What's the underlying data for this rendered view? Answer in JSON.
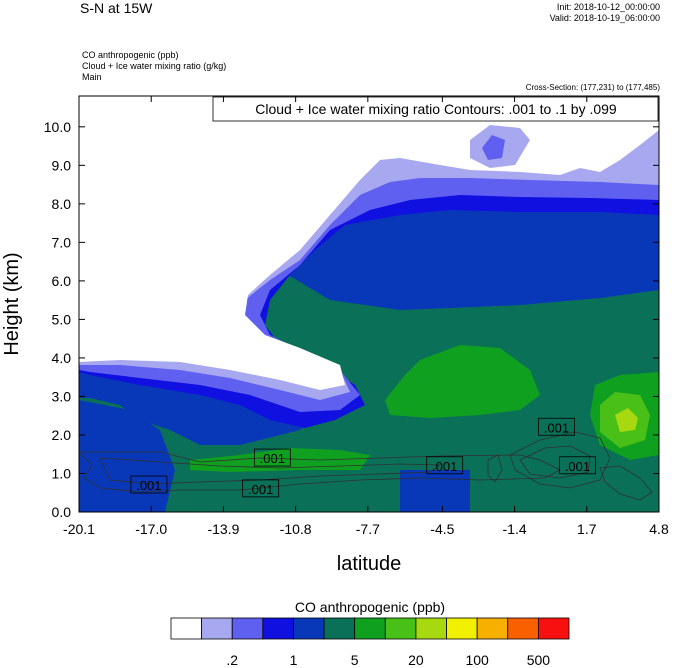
{
  "header": {
    "title": "S-N at 15W",
    "init": "Init: 2018-10-12_00:00:00",
    "valid": "Valid: 2018-10-19_06:00:00",
    "field1": "CO anthropogenic   (ppb)",
    "field2": "Cloud + Ice water mixing ratio   (g/kg)",
    "field3": "Main",
    "cross_section": "Cross-Section: (177,231) to (177,485)"
  },
  "chart_data": {
    "type": "contour",
    "title": "",
    "contour_info": "Cloud + Ice water mixing ratio Contours: .001 to .1 by .099",
    "xlabel": "latitude",
    "ylabel": "Height (km)",
    "xlim": [
      -20.1,
      4.8
    ],
    "ylim": [
      0.0,
      10.8
    ],
    "x_ticks": [
      "-20.1",
      "-17.0",
      "-13.9",
      "-10.8",
      "-7.7",
      "-4.5",
      "-1.4",
      "1.7",
      "4.8"
    ],
    "x_tick_values": [
      -20.1,
      -17.0,
      -13.9,
      -10.8,
      -7.7,
      -4.5,
      -1.4,
      1.7,
      4.8
    ],
    "y_ticks": [
      "0.0",
      "1.0",
      "2.0",
      "3.0",
      "4.0",
      "5.0",
      "6.0",
      "7.0",
      "8.0",
      "9.0",
      "10.0"
    ],
    "y_tick_values": [
      0,
      1,
      2,
      3,
      4,
      5,
      6,
      7,
      8,
      9,
      10
    ],
    "contour_labels": [
      {
        "text": ".001",
        "x": -17.1,
        "y": 0.7
      },
      {
        "text": ".001",
        "x": -11.8,
        "y": 1.4
      },
      {
        "text": ".001",
        "x": -12.3,
        "y": 0.6
      },
      {
        "text": ".001",
        "x": -4.4,
        "y": 1.2
      },
      {
        "text": ".001",
        "x": 0.4,
        "y": 2.2
      },
      {
        "text": ".001",
        "x": 1.3,
        "y": 1.2
      }
    ],
    "colorbar": {
      "title": "CO anthropogenic  (ppb)",
      "colors": [
        "#ffffff",
        "#a8a8f0",
        "#6060f0",
        "#1010e0",
        "#0838b8",
        "#0a7058",
        "#10a020",
        "#48c018",
        "#a8d810",
        "#f0f000",
        "#f8b000",
        "#f86000",
        "#f81010"
      ],
      "labels": [
        ".2",
        "1",
        "5",
        "20",
        "100",
        "500"
      ]
    }
  }
}
